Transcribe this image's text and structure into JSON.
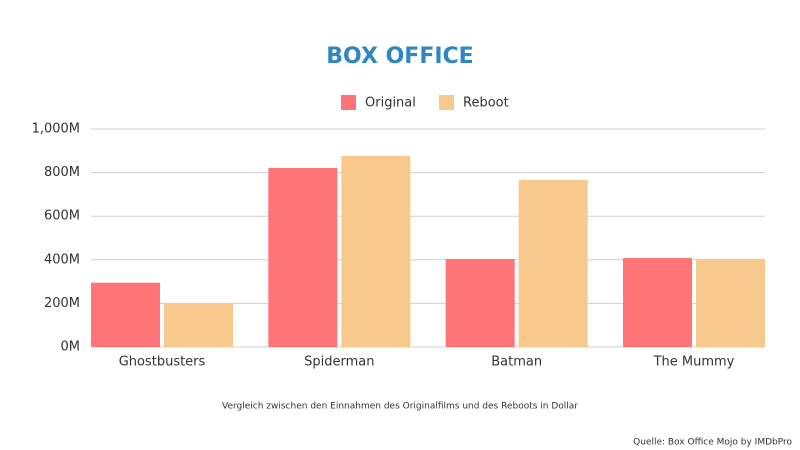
{
  "chart_data": {
    "type": "bar",
    "title": "BOX OFFICE",
    "subtitle": "Vergleich zwischen den Einnahmen des Originalfilms und des Reboots in Dollar",
    "source": "Quelle: Box Office Mojo  by IMDbPro",
    "categories": [
      "Ghostbusters",
      "Spiderman",
      "Batman",
      "The Mummy"
    ],
    "series": [
      {
        "name": "Original",
        "color": "#ff7477",
        "values": [
          295,
          821,
          404,
          408
        ]
      },
      {
        "name": "Reboot",
        "color": "#f8c98c",
        "values": [
          200,
          876,
          766,
          404
        ]
      }
    ],
    "ylim": [
      0,
      1000
    ],
    "yticks": [
      {
        "value": 0,
        "label": "0M"
      },
      {
        "value": 200,
        "label": "200M"
      },
      {
        "value": 400,
        "label": "400M"
      },
      {
        "value": 600,
        "label": "600M"
      },
      {
        "value": 800,
        "label": "800M"
      },
      {
        "value": 1000,
        "label": "1,000M"
      }
    ],
    "grid": true,
    "legend": "top"
  }
}
